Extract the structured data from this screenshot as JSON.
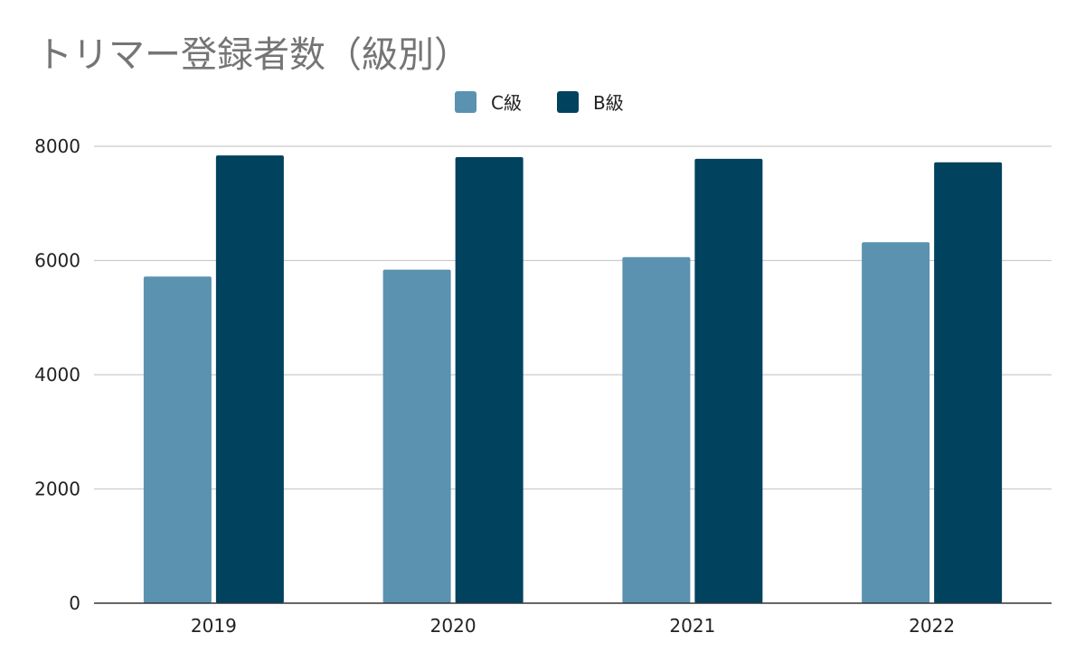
{
  "chart_data": {
    "type": "bar",
    "title": "トリマー登録者数（級別）",
    "categories": [
      "2019",
      "2020",
      "2021",
      "2022"
    ],
    "series": [
      {
        "name": "C級",
        "values": [
          5720,
          5840,
          6060,
          6320
        ],
        "color": "#5a92b0"
      },
      {
        "name": "B級",
        "values": [
          7840,
          7810,
          7780,
          7720
        ],
        "color": "#01425f"
      }
    ],
    "yticks": [
      "0",
      "2000",
      "4000",
      "6000",
      "8000"
    ],
    "ylim": [
      0,
      8000
    ],
    "grid": true,
    "legend_position": "top-center",
    "xlabel": "",
    "ylabel": ""
  }
}
